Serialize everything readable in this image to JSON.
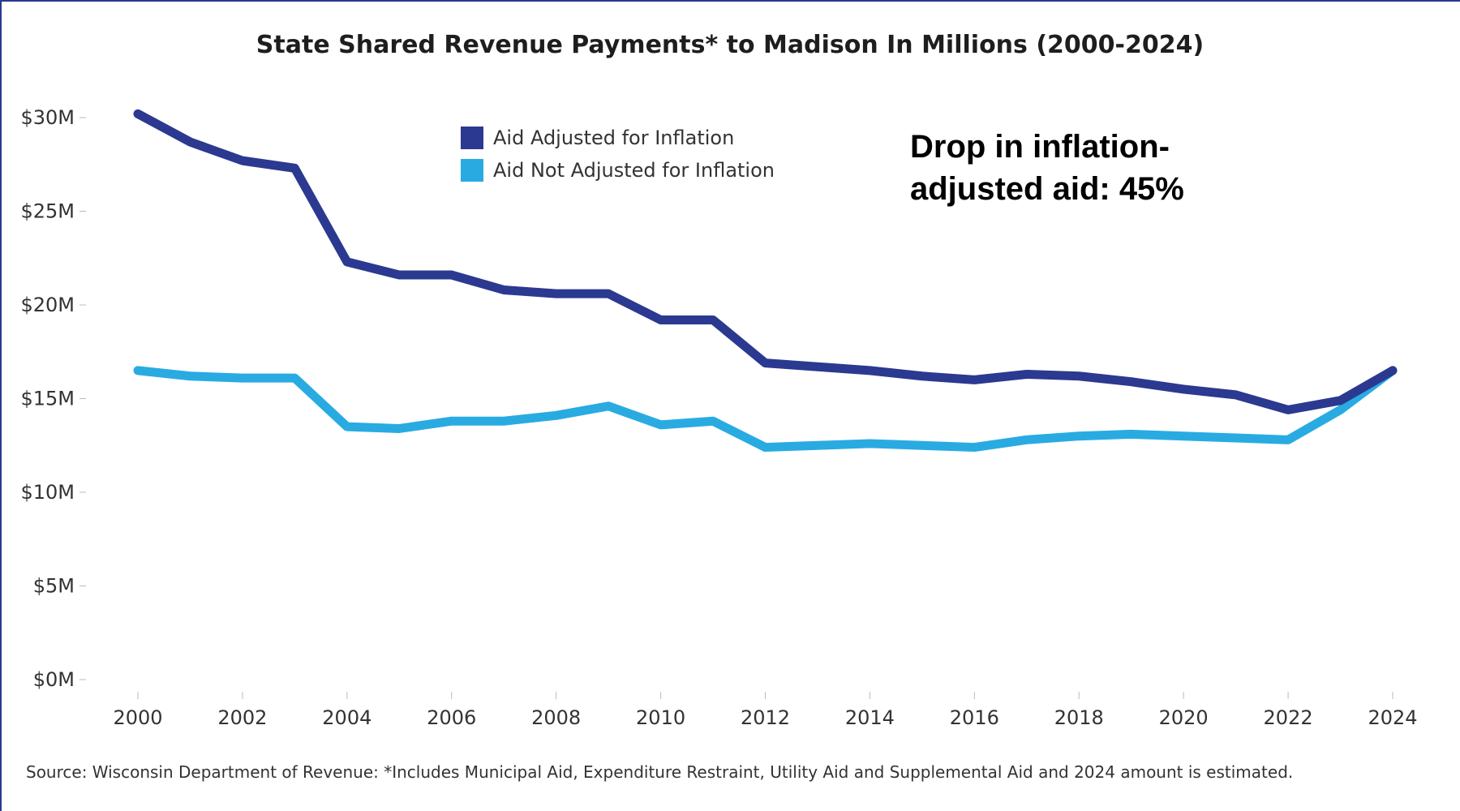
{
  "chart_data": {
    "type": "line",
    "title": "State Shared Revenue Payments* to Madison In Millions (2000-2024)",
    "x": [
      2000,
      2001,
      2002,
      2003,
      2004,
      2005,
      2006,
      2007,
      2008,
      2009,
      2010,
      2011,
      2012,
      2013,
      2014,
      2015,
      2016,
      2017,
      2018,
      2019,
      2020,
      2021,
      2022,
      2023,
      2024
    ],
    "x_ticks": [
      "2000",
      "2002",
      "2004",
      "2006",
      "2008",
      "2010",
      "2012",
      "2014",
      "2016",
      "2018",
      "2020",
      "2022",
      "2024"
    ],
    "y_ticks": [
      "$0M",
      "$5M",
      "$10M",
      "$15M",
      "$20M",
      "$25M",
      "$30M"
    ],
    "ylim": [
      0,
      30
    ],
    "grid": false,
    "legend_position": "top-center",
    "series": [
      {
        "name": "Aid Adjusted for Inflation",
        "color": "#2b3990",
        "values": [
          30.2,
          28.7,
          27.7,
          27.3,
          22.3,
          21.6,
          21.6,
          20.8,
          20.6,
          20.6,
          19.2,
          19.2,
          16.9,
          16.7,
          16.5,
          16.2,
          16.0,
          16.3,
          16.2,
          15.9,
          15.5,
          15.2,
          14.4,
          14.9,
          16.5
        ]
      },
      {
        "name": "Aid Not Adjusted for Inflation",
        "color": "#29abe2",
        "values": [
          16.5,
          16.2,
          16.1,
          16.1,
          13.5,
          13.4,
          13.8,
          13.8,
          14.1,
          14.6,
          13.6,
          13.8,
          12.4,
          12.5,
          12.6,
          12.5,
          12.4,
          12.8,
          13.0,
          13.1,
          13.0,
          12.9,
          12.8,
          14.4,
          16.5
        ]
      }
    ],
    "annotation": "Drop in inflation-adjusted aid: 45%",
    "source": "Source: Wisconsin Department of Revenue: *Includes Municipal Aid, Expenditure Restraint, Utility Aid and Supplemental Aid and 2024 amount is estimated."
  }
}
